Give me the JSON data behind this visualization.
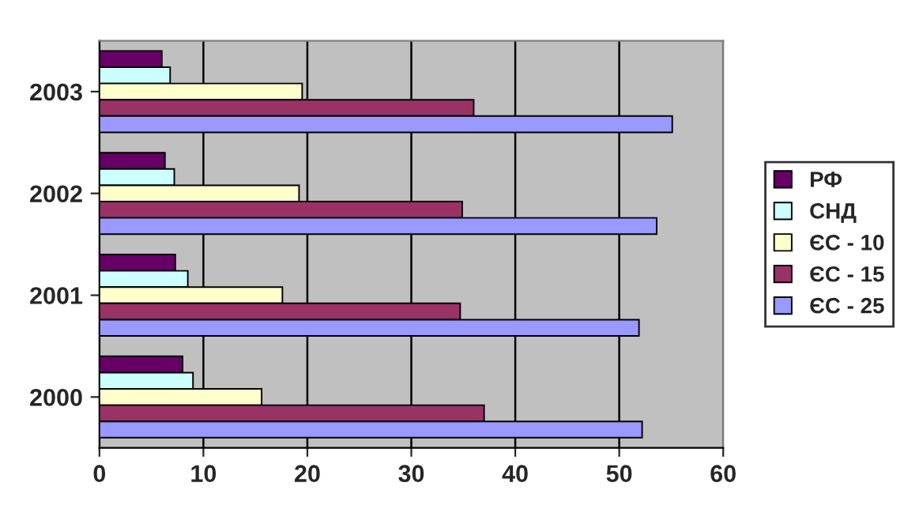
{
  "chart_data": {
    "type": "bar",
    "orientation": "horizontal",
    "categories": [
      "2003",
      "2002",
      "2001",
      "2000"
    ],
    "series": [
      {
        "name": "РФ",
        "color": "#660066",
        "values": [
          6.0,
          6.3,
          7.3,
          8.0
        ]
      },
      {
        "name": "СНД",
        "color": "#ccffff",
        "values": [
          6.8,
          7.2,
          8.5,
          9.0
        ]
      },
      {
        "name": "ЄС - 10",
        "color": "#ffffcc",
        "values": [
          19.5,
          19.2,
          17.6,
          15.6
        ]
      },
      {
        "name": "ЄС - 15",
        "color": "#993366",
        "values": [
          36.0,
          34.9,
          34.7,
          37.0
        ]
      },
      {
        "name": "ЄС - 25",
        "color": "#9999ff",
        "values": [
          55.1,
          53.6,
          51.9,
          52.2
        ]
      }
    ],
    "xlim": [
      0,
      60
    ],
    "xticks": [
      0,
      10,
      20,
      30,
      40,
      50,
      60
    ],
    "grid": "x",
    "legend": "right"
  }
}
